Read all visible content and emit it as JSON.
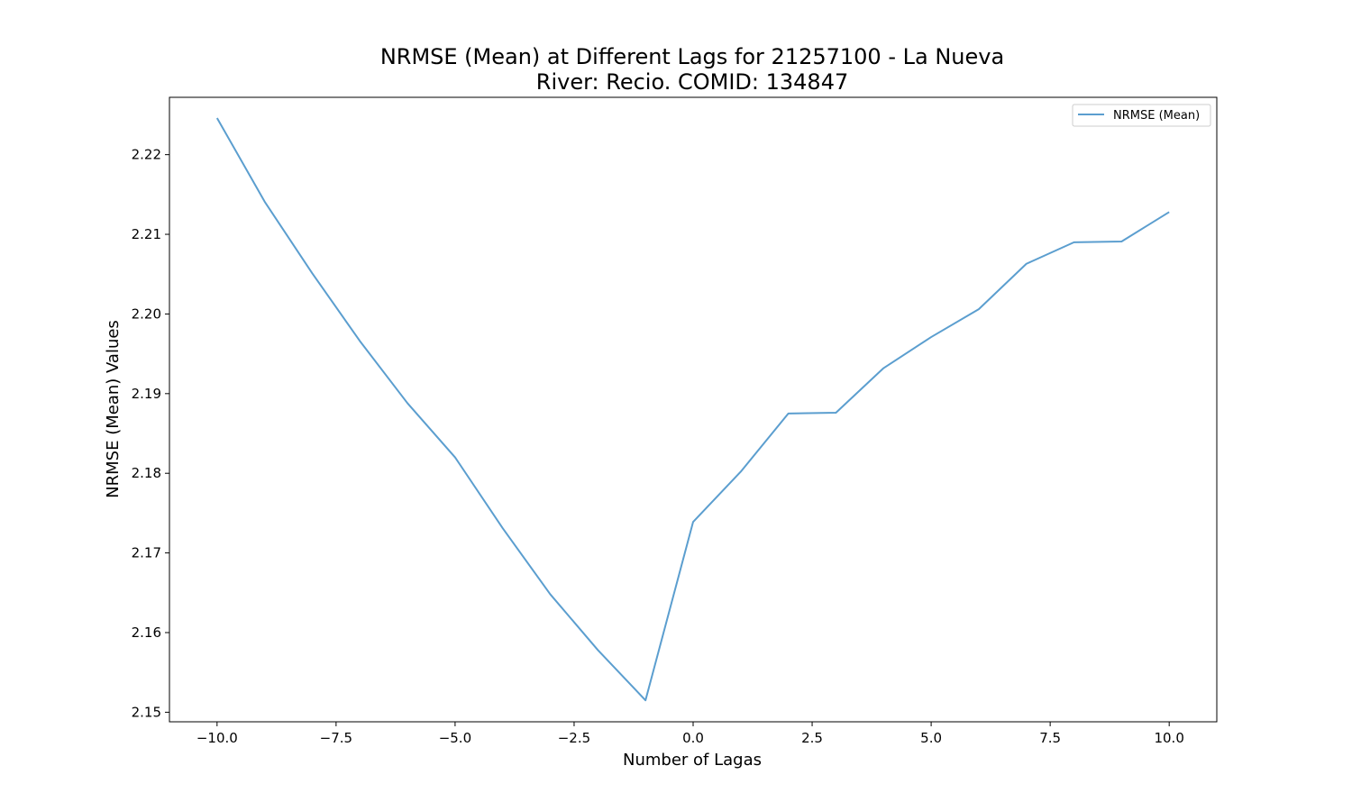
{
  "chart_data": {
    "type": "line",
    "title_line1": "NRMSE (Mean) at Different Lags for 21257100 - La Nueva",
    "title_line2": "River: Recio. COMID: 134847",
    "xlabel": "Number of Lagas",
    "ylabel": "NRMSE (Mean) Values",
    "xlim": [
      -11,
      11
    ],
    "ylim": [
      2.1488,
      2.2272
    ],
    "xticks": [
      -10.0,
      -7.5,
      -5.0,
      -2.5,
      0.0,
      2.5,
      5.0,
      7.5,
      10.0
    ],
    "xtick_labels": [
      "−10.0",
      "−7.5",
      "−5.0",
      "−2.5",
      "0.0",
      "2.5",
      "5.0",
      "7.5",
      "10.0"
    ],
    "yticks": [
      2.15,
      2.16,
      2.17,
      2.18,
      2.19,
      2.2,
      2.21,
      2.22
    ],
    "ytick_labels": [
      "2.15",
      "2.16",
      "2.17",
      "2.18",
      "2.19",
      "2.20",
      "2.21",
      "2.22"
    ],
    "legend_position": "upper right",
    "grid": false,
    "series": [
      {
        "name": "NRMSE (Mean)",
        "color": "#5b9ecf",
        "x": [
          -10,
          -9,
          -8,
          -7,
          -6,
          -5,
          -4,
          -3,
          -2,
          -1,
          0,
          1,
          2,
          3,
          4,
          5,
          6,
          7,
          8,
          9,
          10
        ],
        "y": [
          2.2246,
          2.2141,
          2.2051,
          2.1966,
          2.1888,
          2.182,
          2.1731,
          2.1648,
          2.1578,
          2.1515,
          2.1739,
          2.1802,
          2.1875,
          2.1876,
          2.1932,
          2.1971,
          2.2006,
          2.2063,
          2.209,
          2.2091,
          2.2128
        ]
      }
    ]
  }
}
